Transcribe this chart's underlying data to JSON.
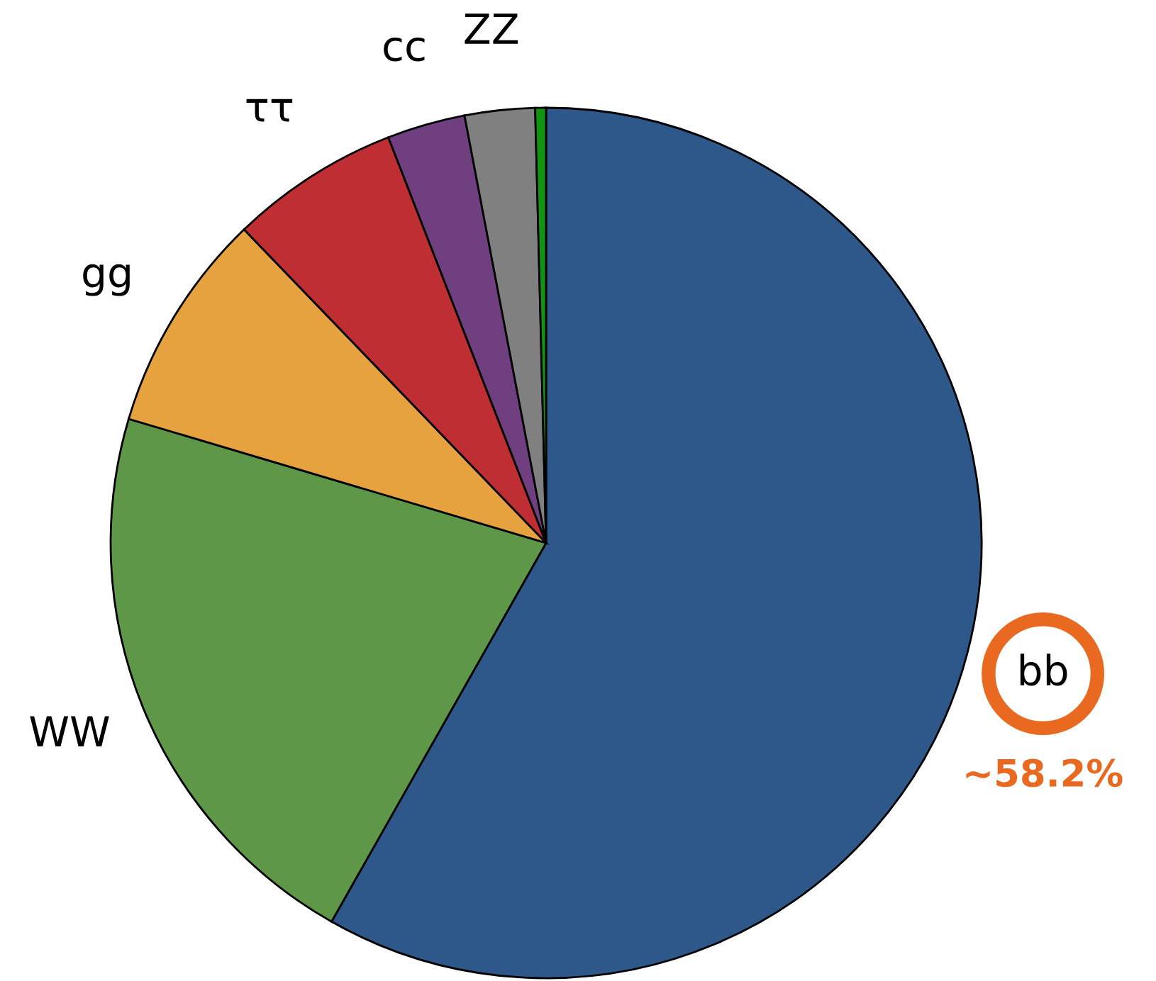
{
  "chart_data": {
    "type": "pie",
    "categories": [
      "bb",
      "WW",
      "gg",
      "ττ",
      "cc",
      "ZZ",
      null
    ],
    "values": [
      58.2,
      21.4,
      8.2,
      6.3,
      2.9,
      2.6,
      0.4
    ],
    "colors": [
      "#2e5889",
      "#5e9748",
      "#e6a23f",
      "#bf2e32",
      "#6f3f80",
      "#808080",
      "#129412"
    ],
    "value_labels": [
      "~58.2%",
      null,
      null,
      null,
      null,
      null,
      null
    ]
  }
}
